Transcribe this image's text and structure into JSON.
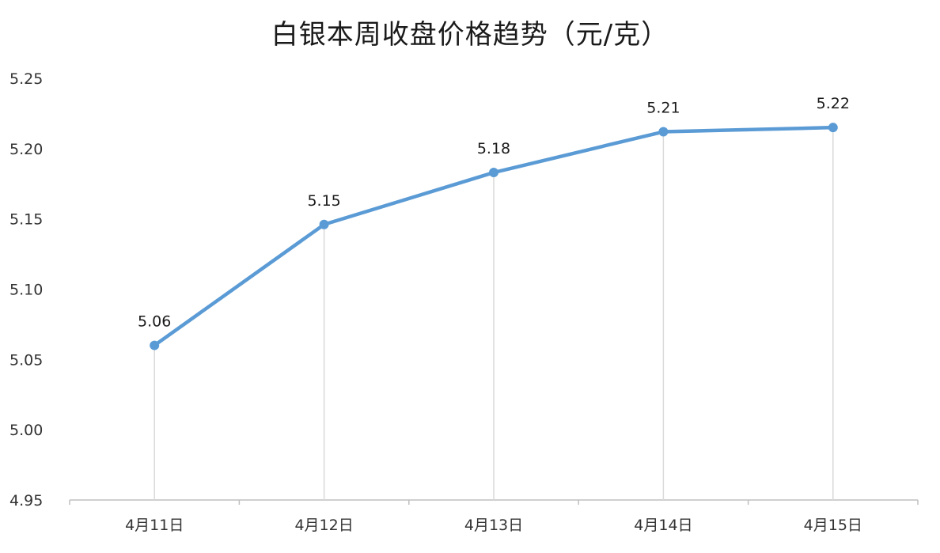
{
  "chart_data": {
    "type": "line",
    "title": "白银本周收盘价格趋势（元/克）",
    "xlabel": "",
    "ylabel": "",
    "categories": [
      "4月11日",
      "4月12日",
      "4月13日",
      "4月14日",
      "4月15日"
    ],
    "series": [
      {
        "values": [
          5.06,
          5.146,
          5.183,
          5.212,
          5.215
        ],
        "labels": [
          "5.06",
          "5.15",
          "5.18",
          "5.21",
          "5.22"
        ],
        "color": "#5b9bd5"
      }
    ],
    "ylim": [
      4.95,
      5.25
    ],
    "yticks": [
      4.95,
      5.0,
      5.05,
      5.1,
      5.15,
      5.2,
      5.25
    ],
    "ytick_labels": [
      "4.95",
      "5.00",
      "5.05",
      "5.10",
      "5.15",
      "5.20",
      "5.25"
    ],
    "grid": false,
    "drop_lines": true,
    "legend": "none"
  }
}
